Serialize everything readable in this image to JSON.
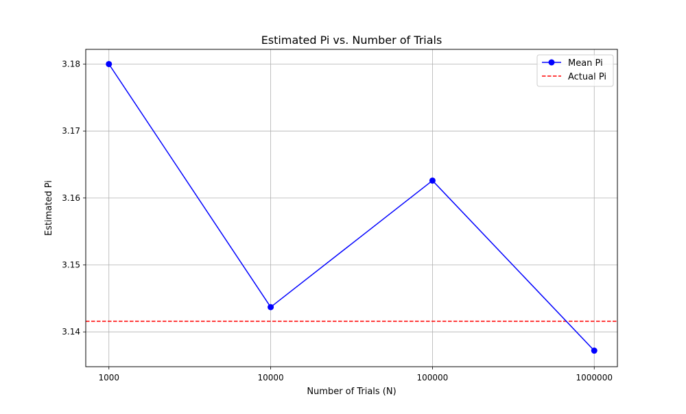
{
  "chart_data": {
    "type": "line",
    "title": "Estimated Pi vs. Number of Trials",
    "xlabel": "Number of Trials (N)",
    "ylabel": "Estimated Pi",
    "x_scale": "log",
    "categories": [
      "1000",
      "10000",
      "100000",
      "1000000"
    ],
    "x": [
      1000,
      10000,
      100000,
      1000000
    ],
    "yticks": [
      "3.14",
      "3.15",
      "3.16",
      "3.17",
      "3.18"
    ],
    "ylim": [
      3.1348,
      3.1822
    ],
    "grid": true,
    "legend_position": "top-right",
    "series": [
      {
        "name": "Mean Pi",
        "values": [
          3.18,
          3.1437,
          3.1626,
          3.1372
        ],
        "color": "#0000ff",
        "style": "solid",
        "marker": "circle"
      }
    ],
    "reference_lines": [
      {
        "name": "Actual Pi",
        "y": 3.14159,
        "color": "#ff0000",
        "style": "dashed"
      }
    ]
  }
}
